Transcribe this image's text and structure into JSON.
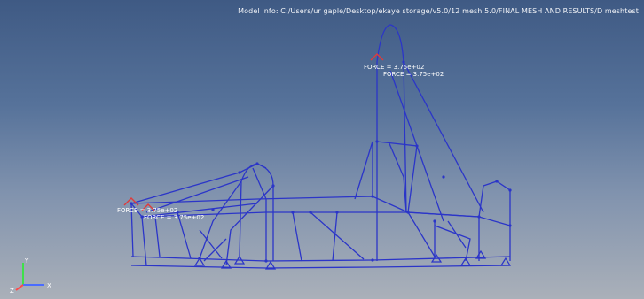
{
  "viewport": {
    "model_info": "Model Info: C:/Users/ur gaple/Desktop/ekaye storage/v5.0/12 mesh 5.0/FINAL MESH AND RESULTS/D meshtest",
    "background_top": "#3f5a84",
    "background_bottom": "#aab0b9"
  },
  "frame": {
    "line_color": "#2b35c8",
    "node_color": "#2b35c8",
    "force_color": "#e03a3a"
  },
  "loads": [
    {
      "label": "FORCE = 3.75e+02"
    },
    {
      "label": "FORCE = 3.75e+02"
    },
    {
      "label": "FORCE = 3.75e+02"
    },
    {
      "label": "FORCE = 3.75e+02"
    }
  ],
  "triad": {
    "x_label": "X",
    "y_label": "Y",
    "z_label": "Z"
  }
}
